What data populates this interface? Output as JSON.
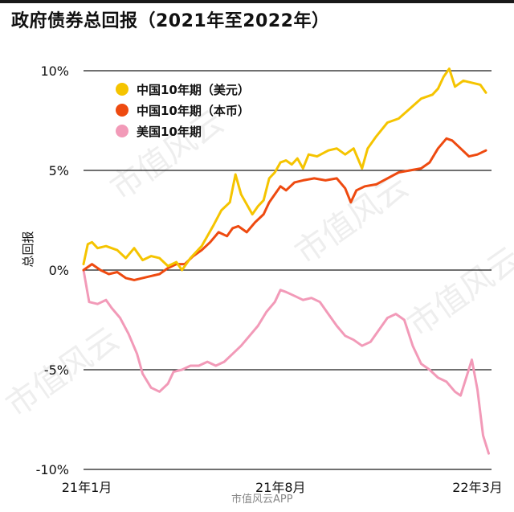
{
  "title": "政府债券总回报（2021年至2022年）",
  "watermark": "市值风云",
  "footer_watermark": "市值风云APP",
  "chart_data": {
    "type": "line",
    "title": "政府债券总回报（2021年至2022年）",
    "ylabel": "总回报",
    "xlabel": "",
    "ylim": [
      -10,
      10
    ],
    "yticks": [
      {
        "value": 10,
        "label": "10%"
      },
      {
        "value": 5,
        "label": "5%"
      },
      {
        "value": 0,
        "label": "0%"
      },
      {
        "value": -5,
        "label": "-5%"
      },
      {
        "value": -10,
        "label": "-10%"
      }
    ],
    "xlim": [
      0,
      14.5
    ],
    "xticks": [
      {
        "value": 0,
        "label": "21年1月"
      },
      {
        "value": 7,
        "label": "21年8月"
      },
      {
        "value": 14,
        "label": "22年3月"
      }
    ],
    "gridlines": "horizontal",
    "legend": "top-left",
    "series": [
      {
        "name": "中国10年期（美元）",
        "color": "#f5c400",
        "values": [
          [
            0,
            0.3
          ],
          [
            0.15,
            1.3
          ],
          [
            0.3,
            1.4
          ],
          [
            0.5,
            1.1
          ],
          [
            0.8,
            1.2
          ],
          [
            1.2,
            1.0
          ],
          [
            1.5,
            0.6
          ],
          [
            1.8,
            1.1
          ],
          [
            2.1,
            0.5
          ],
          [
            2.4,
            0.7
          ],
          [
            2.7,
            0.6
          ],
          [
            3.0,
            0.2
          ],
          [
            3.3,
            0.4
          ],
          [
            3.5,
            0.0
          ],
          [
            3.8,
            0.6
          ],
          [
            4.2,
            1.2
          ],
          [
            4.6,
            2.2
          ],
          [
            4.9,
            3.0
          ],
          [
            5.2,
            3.4
          ],
          [
            5.4,
            4.8
          ],
          [
            5.6,
            3.8
          ],
          [
            5.8,
            3.3
          ],
          [
            6.0,
            2.8
          ],
          [
            6.2,
            3.2
          ],
          [
            6.4,
            3.5
          ],
          [
            6.6,
            4.6
          ],
          [
            6.8,
            4.9
          ],
          [
            7.0,
            5.4
          ],
          [
            7.2,
            5.5
          ],
          [
            7.4,
            5.3
          ],
          [
            7.6,
            5.6
          ],
          [
            7.8,
            5.1
          ],
          [
            8.0,
            5.8
          ],
          [
            8.3,
            5.7
          ],
          [
            8.7,
            6.0
          ],
          [
            9.0,
            6.1
          ],
          [
            9.3,
            5.8
          ],
          [
            9.6,
            6.1
          ],
          [
            9.9,
            5.1
          ],
          [
            10.1,
            6.1
          ],
          [
            10.4,
            6.7
          ],
          [
            10.8,
            7.4
          ],
          [
            11.2,
            7.6
          ],
          [
            11.6,
            8.1
          ],
          [
            12.0,
            8.6
          ],
          [
            12.4,
            8.8
          ],
          [
            12.6,
            9.1
          ],
          [
            12.8,
            9.7
          ],
          [
            13.0,
            10.1
          ],
          [
            13.2,
            9.2
          ],
          [
            13.5,
            9.5
          ],
          [
            13.8,
            9.4
          ],
          [
            14.1,
            9.3
          ],
          [
            14.3,
            8.9
          ]
        ]
      },
      {
        "name": "中国10年期（本币）",
        "color": "#ee4a10",
        "values": [
          [
            0,
            0.0
          ],
          [
            0.3,
            0.3
          ],
          [
            0.6,
            0.0
          ],
          [
            0.9,
            -0.2
          ],
          [
            1.2,
            -0.1
          ],
          [
            1.5,
            -0.4
          ],
          [
            1.8,
            -0.5
          ],
          [
            2.1,
            -0.4
          ],
          [
            2.4,
            -0.3
          ],
          [
            2.7,
            -0.2
          ],
          [
            3.0,
            0.1
          ],
          [
            3.3,
            0.3
          ],
          [
            3.6,
            0.3
          ],
          [
            3.9,
            0.7
          ],
          [
            4.2,
            1.0
          ],
          [
            4.5,
            1.4
          ],
          [
            4.8,
            1.9
          ],
          [
            5.1,
            1.7
          ],
          [
            5.3,
            2.1
          ],
          [
            5.5,
            2.2
          ],
          [
            5.8,
            1.9
          ],
          [
            6.1,
            2.4
          ],
          [
            6.4,
            2.8
          ],
          [
            6.6,
            3.4
          ],
          [
            6.8,
            3.8
          ],
          [
            7.0,
            4.2
          ],
          [
            7.2,
            4.0
          ],
          [
            7.5,
            4.4
          ],
          [
            7.8,
            4.5
          ],
          [
            8.2,
            4.6
          ],
          [
            8.6,
            4.5
          ],
          [
            9.0,
            4.6
          ],
          [
            9.3,
            4.1
          ],
          [
            9.5,
            3.4
          ],
          [
            9.7,
            4.0
          ],
          [
            10.0,
            4.2
          ],
          [
            10.4,
            4.3
          ],
          [
            10.8,
            4.6
          ],
          [
            11.2,
            4.9
          ],
          [
            11.6,
            5.0
          ],
          [
            12.0,
            5.1
          ],
          [
            12.3,
            5.4
          ],
          [
            12.6,
            6.1
          ],
          [
            12.9,
            6.6
          ],
          [
            13.1,
            6.5
          ],
          [
            13.4,
            6.1
          ],
          [
            13.7,
            5.7
          ],
          [
            14.0,
            5.8
          ],
          [
            14.3,
            6.0
          ]
        ]
      },
      {
        "name": "美国10年期",
        "color": "#f29ab8",
        "values": [
          [
            0,
            0.0
          ],
          [
            0.2,
            -1.6
          ],
          [
            0.5,
            -1.7
          ],
          [
            0.8,
            -1.5
          ],
          [
            1.0,
            -1.9
          ],
          [
            1.3,
            -2.4
          ],
          [
            1.6,
            -3.2
          ],
          [
            1.9,
            -4.2
          ],
          [
            2.1,
            -5.2
          ],
          [
            2.4,
            -5.9
          ],
          [
            2.7,
            -6.1
          ],
          [
            3.0,
            -5.7
          ],
          [
            3.2,
            -5.1
          ],
          [
            3.5,
            -5.0
          ],
          [
            3.8,
            -4.8
          ],
          [
            4.1,
            -4.8
          ],
          [
            4.4,
            -4.6
          ],
          [
            4.7,
            -4.8
          ],
          [
            5.0,
            -4.6
          ],
          [
            5.3,
            -4.2
          ],
          [
            5.6,
            -3.8
          ],
          [
            5.9,
            -3.3
          ],
          [
            6.2,
            -2.8
          ],
          [
            6.5,
            -2.1
          ],
          [
            6.8,
            -1.6
          ],
          [
            7.0,
            -1.0
          ],
          [
            7.2,
            -1.1
          ],
          [
            7.5,
            -1.3
          ],
          [
            7.8,
            -1.5
          ],
          [
            8.1,
            -1.4
          ],
          [
            8.4,
            -1.6
          ],
          [
            8.7,
            -2.2
          ],
          [
            9.0,
            -2.8
          ],
          [
            9.3,
            -3.3
          ],
          [
            9.6,
            -3.5
          ],
          [
            9.9,
            -3.8
          ],
          [
            10.2,
            -3.6
          ],
          [
            10.5,
            -3.0
          ],
          [
            10.8,
            -2.4
          ],
          [
            11.1,
            -2.2
          ],
          [
            11.4,
            -2.5
          ],
          [
            11.7,
            -3.8
          ],
          [
            12.0,
            -4.7
          ],
          [
            12.3,
            -5.0
          ],
          [
            12.6,
            -5.4
          ],
          [
            12.9,
            -5.6
          ],
          [
            13.2,
            -6.1
          ],
          [
            13.4,
            -6.3
          ],
          [
            13.6,
            -5.4
          ],
          [
            13.8,
            -4.5
          ],
          [
            14.0,
            -6.0
          ],
          [
            14.2,
            -8.3
          ],
          [
            14.4,
            -9.2
          ]
        ]
      }
    ]
  }
}
